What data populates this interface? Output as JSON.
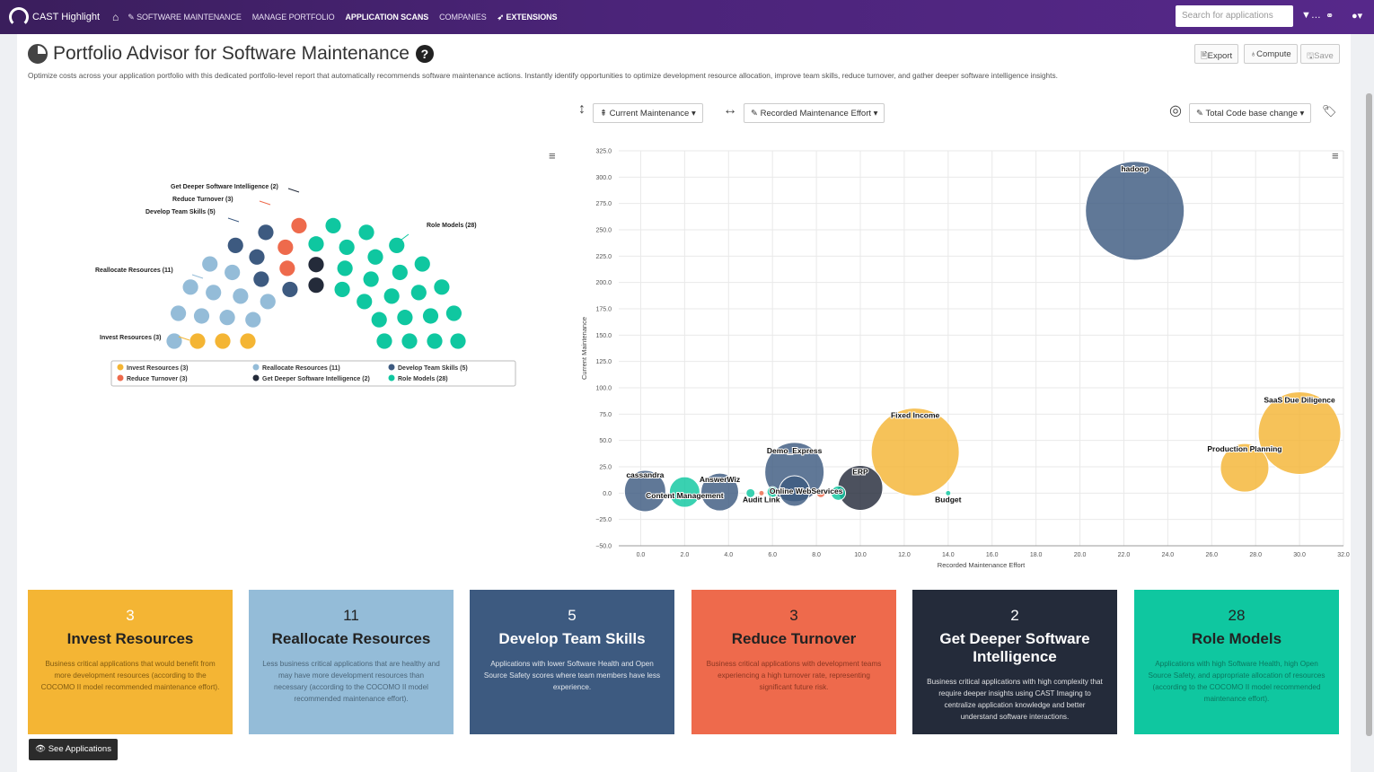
{
  "topbar": {
    "brand": "CAST Highlight",
    "nav": [
      "SOFTWARE MAINTENANCE",
      "MANAGE PORTFOLIO",
      "APPLICATION SCANS",
      "COMPANIES",
      "EXTENSIONS"
    ],
    "search_placeholder": "Search for applications"
  },
  "header": {
    "title": "Portfolio Advisor for Software Maintenance",
    "subtitle": "Optimize costs across your application portfolio with this dedicated portfolio-level report that automatically recommends software maintenance actions. Instantly identify opportunities to optimize development resource allocation, improve team skills, reduce turnover, and gather deeper software intelligence insights.",
    "export": "Export",
    "compute": "Compute",
    "save": "Save"
  },
  "controls": {
    "y_axis": "Current Maintenance",
    "x_axis": "Recorded Maintenance Effort",
    "size": "Total Code base change"
  },
  "colors": {
    "invest": "#f4b534",
    "reallocate": "#94bcd8",
    "develop": "#3d5a80",
    "reduce": "#ee6a4c",
    "deeper": "#242b3a",
    "role": "#0fc7a0"
  },
  "chart_data": [
    {
      "type": "pie",
      "variant": "parliament",
      "categories": [
        "Invest Resources",
        "Reallocate Resources",
        "Develop Team Skills",
        "Reduce Turnover",
        "Get Deeper Software Intelligence",
        "Role Models"
      ],
      "values": [
        3,
        11,
        5,
        3,
        2,
        28
      ],
      "labels": [
        "Invest Resources (3)",
        "Reallocate Resources (11)",
        "Develop Team Skills (5)",
        "Reduce Turnover (3)",
        "Get Deeper Software Intelligence (2)",
        "Role Models (28)"
      ],
      "legend": [
        "Invest Resources (3)",
        "Reallocate Resources (11)",
        "Develop Team Skills (5)",
        "Reduce Turnover (3)",
        "Get Deeper Software Intelligence (2)",
        "Role Models (28)"
      ],
      "legend_position": "bottom"
    },
    {
      "type": "scatter",
      "variant": "bubble",
      "xlabel": "Recorded Maintenance Effort",
      "ylabel": "Current Maintenance",
      "xlim": [
        -1,
        32
      ],
      "ylim": [
        -50,
        325
      ],
      "xticks": [
        "0.0",
        "2.0",
        "4.0",
        "6.0",
        "8.0",
        "10.0",
        "12.0",
        "14.0",
        "16.0",
        "18.0",
        "20.0",
        "22.0",
        "24.0",
        "26.0",
        "28.0",
        "30.0",
        "32.0"
      ],
      "yticks": [
        "-50.0",
        "-25.0",
        "0.0",
        "25.0",
        "50.0",
        "75.0",
        "100.0",
        "125.0",
        "150.0",
        "175.0",
        "200.0",
        "225.0",
        "250.0",
        "275.0",
        "300.0",
        "325.0"
      ],
      "grid": true,
      "points": [
        {
          "name": "hadoop",
          "x": 22.5,
          "y": 268,
          "size": 55,
          "group": "develop",
          "label": "hadoop"
        },
        {
          "name": "SaaS Due Diligence",
          "x": 30.0,
          "y": 57,
          "size": 46,
          "group": "invest",
          "label": "SaaS Due Diligence"
        },
        {
          "name": "Production Planning",
          "x": 27.5,
          "y": 24,
          "size": 27,
          "group": "invest",
          "label": "Production Planning"
        },
        {
          "name": "Fixed Income",
          "x": 12.5,
          "y": 39,
          "size": 49,
          "group": "invest",
          "label": "Fixed Income"
        },
        {
          "name": "Demo_Express",
          "x": 7.0,
          "y": 20,
          "size": 33,
          "group": "develop",
          "label": "Demo_Express"
        },
        {
          "name": "Online WebServices",
          "x": 7.0,
          "y": 2,
          "size": 17,
          "group": "develop",
          "label": "Online WebServices"
        },
        {
          "name": "ERP",
          "x": 10.0,
          "y": 5,
          "size": 25,
          "group": "deeper",
          "label": "ERP"
        },
        {
          "name": "cassandra",
          "x": 0.2,
          "y": 2,
          "size": 23,
          "group": "develop",
          "label": "cassandra"
        },
        {
          "name": "Content Management",
          "x": 2.0,
          "y": 1,
          "size": 17,
          "group": "role",
          "label": "Content Management"
        },
        {
          "name": "AnswerWiz",
          "x": 3.6,
          "y": 1,
          "size": 21,
          "group": "develop",
          "label": "AnswerWiz"
        },
        {
          "name": "Audit Link",
          "x": 5.0,
          "y": 0,
          "size": 5,
          "group": "role",
          "label": "Audit Link"
        },
        {
          "name": "Budget",
          "x": 14.0,
          "y": 0,
          "size": 3,
          "group": "role",
          "label": "Budget"
        },
        {
          "name": "",
          "x": 9.0,
          "y": 0,
          "size": 8,
          "group": "role",
          "label": ""
        },
        {
          "name": "",
          "x": 8.2,
          "y": 0,
          "size": 5,
          "group": "reduce",
          "label": ""
        },
        {
          "name": "",
          "x": 6.0,
          "y": 1,
          "size": 6,
          "group": "role",
          "label": ""
        },
        {
          "name": "",
          "x": 5.5,
          "y": 0,
          "size": 3,
          "group": "reduce",
          "label": ""
        }
      ]
    }
  ],
  "cards": [
    {
      "count": "3",
      "title": "Invest Resources",
      "desc": "Business critical applications that would benefit from more development resources (according to the COCOMO II model recommended maintenance effort)."
    },
    {
      "count": "11",
      "title": "Reallocate Resources",
      "desc": "Less business critical applications that are healthy and may have more development resources than necessary (according to the COCOMO II model recommended maintenance effort)."
    },
    {
      "count": "5",
      "title": "Develop Team Skills",
      "desc": "Applications with lower Software Health and Open Source Safety scores where team members have less experience."
    },
    {
      "count": "3",
      "title": "Reduce Turnover",
      "desc": "Business critical applications with development teams experiencing a high turnover rate, representing significant future risk."
    },
    {
      "count": "2",
      "title": "Get Deeper Software Intelligence",
      "desc": "Business critical applications with high complexity that require deeper insights using CAST Imaging to centralize application knowledge and better understand software interactions."
    },
    {
      "count": "28",
      "title": "Role Models",
      "desc": "Applications with high Software Health, high Open Source Safety, and appropriate allocation of resources (according to the COCOMO II model recommended maintenance effort)."
    }
  ],
  "see_apps": "See Applications"
}
